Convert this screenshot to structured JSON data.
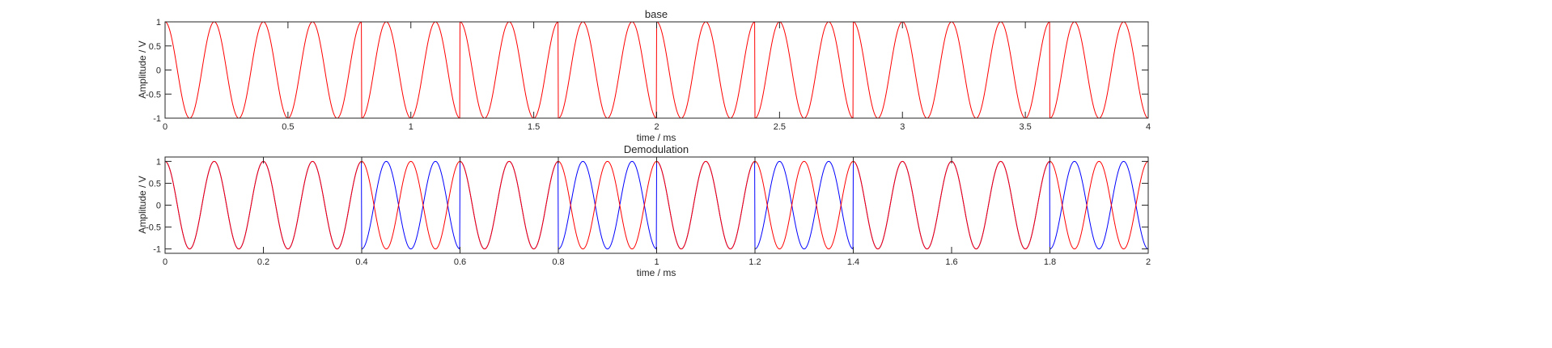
{
  "chart_data": [
    {
      "type": "line",
      "title": "base",
      "xlabel": "time / ms",
      "ylabel": "Amplitude / V",
      "xlim": [
        0,
        4
      ],
      "ylim": [
        -1,
        1
      ],
      "xticks": [
        "0",
        "0.5",
        "1",
        "1.5",
        "2",
        "2.5",
        "3",
        "3.5",
        "4"
      ],
      "yticks": [
        "-1",
        "-0.5",
        "0",
        "0.5",
        "1"
      ],
      "grid": false,
      "series": [
        {
          "color": "#ff0000",
          "kind": "phase-modulated cosine",
          "frequency_khz": 5,
          "amplitude": 1,
          "phases_per_segment_deg": [
            0,
            0,
            180,
            0,
            180,
            0,
            180,
            0,
            0,
            180,
            0
          ],
          "segment_boundaries_ms": [
            0.0,
            0.4,
            0.8,
            1.2,
            1.6,
            2.0,
            2.4,
            2.8,
            3.2,
            3.6,
            4.0
          ]
        }
      ]
    },
    {
      "type": "line",
      "title": "Demodulation",
      "xlabel": "time / ms",
      "ylabel": "Amplitude / V",
      "xlim": [
        0,
        2
      ],
      "ylim": [
        -1.1,
        1.1
      ],
      "xticks": [
        "0",
        "0.2",
        "0.4",
        "0.6",
        "0.8",
        "1",
        "1.2",
        "1.4",
        "1.6",
        "1.8",
        "2"
      ],
      "yticks": [
        "-1",
        "-0.5",
        "0",
        "0.5",
        "1"
      ],
      "grid": false,
      "series": [
        {
          "color": "#0000ff",
          "kind": "demodulated signal",
          "frequency_khz": 10,
          "amplitude": 1,
          "phases_per_segment_deg": [
            0,
            0,
            180,
            0,
            180,
            0,
            180,
            0,
            0,
            180,
            0
          ],
          "segment_boundaries_ms": [
            0.0,
            0.2,
            0.4,
            0.6,
            0.8,
            1.0,
            1.2,
            1.4,
            1.6,
            1.8,
            2.0
          ]
        },
        {
          "color": "#ff0000",
          "kind": "reference cosine",
          "frequency_khz": 10,
          "amplitude": 1,
          "phases_per_segment_deg": [
            0,
            0,
            0,
            0,
            0,
            0,
            0,
            0,
            0,
            0,
            0
          ],
          "segment_boundaries_ms": [
            0.0,
            0.2,
            0.4,
            0.6,
            0.8,
            1.0,
            1.2,
            1.4,
            1.6,
            1.8,
            2.0
          ]
        }
      ]
    }
  ]
}
